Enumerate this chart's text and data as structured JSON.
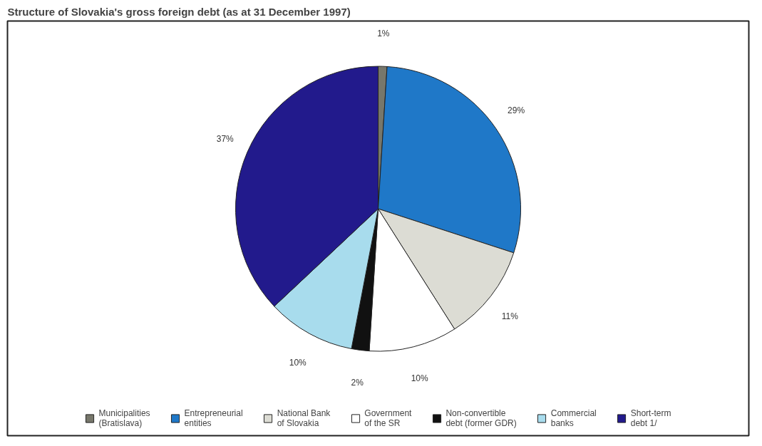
{
  "chart_data": {
    "type": "pie",
    "title": "Structure of Slovakia's gross foreign debt (as at 31 December 1997)",
    "categories": [
      "Municipalities\n(Bratislava)",
      "Entrepreneurial\nentities",
      "National Bank\nof Slovakia",
      "Government\nof the SR",
      "Non-convertible\ndebt (former GDR)",
      "Commercial\nbanks",
      "Short-term\ndebt 1/"
    ],
    "values": [
      1,
      29,
      11,
      10,
      2,
      10,
      37
    ],
    "colors": [
      "#77776b",
      "#1f78c8",
      "#dcdcd4",
      "#ffffff",
      "#111111",
      "#a8dced",
      "#221a8c"
    ],
    "value_labels": [
      "1%",
      "29%",
      "11%",
      "10%",
      "2%",
      "10%",
      "37%"
    ],
    "legend": "bottom"
  }
}
